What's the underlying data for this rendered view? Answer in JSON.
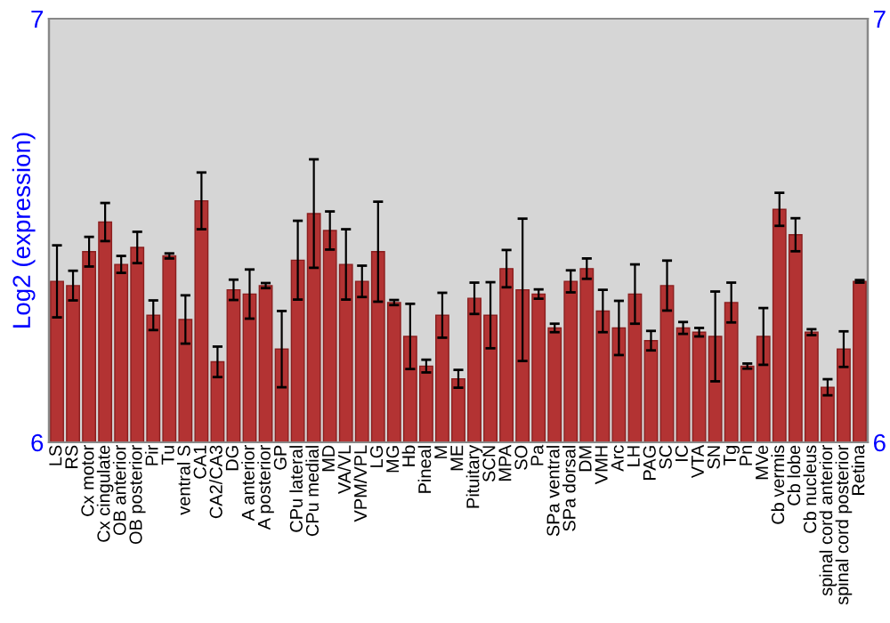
{
  "chart_data": {
    "type": "bar",
    "ylabel": "Log2 (expression)",
    "color": "#b33333",
    "categories": [
      "LS",
      "RS",
      "Cx motor",
      "Cx cingulate",
      "OB anterior",
      "OB posterior",
      "Pir",
      "Tu",
      "ventral S",
      "CA1",
      "CA2/CA3",
      "DG",
      "A anterior",
      "A posterior",
      "GP",
      "CPu lateral",
      "CPu medial",
      "MD",
      "VA/VL",
      "VPM/VPL",
      "LG",
      "MG",
      "Hb",
      "Pineal",
      "M",
      "ME",
      "Pituitary",
      "SCN",
      "MPA",
      "SO",
      "Pa",
      "SPa ventral",
      "SPa dorsal",
      "DM",
      "VMH",
      "Arc",
      "LH",
      "PAG",
      "SC",
      "IC",
      "VTA",
      "SN",
      "Tg",
      "Pn",
      "MVe",
      "Cb vermis",
      "Cb lobe",
      "Cb nucleus",
      "spinal cord anterior",
      "spinal cord posterior",
      "Retina"
    ],
    "values": [
      6.38,
      6.37,
      6.45,
      6.52,
      6.42,
      6.46,
      6.3,
      6.44,
      6.29,
      6.57,
      6.19,
      6.36,
      6.35,
      6.37,
      6.22,
      6.43,
      6.54,
      6.5,
      6.42,
      6.38,
      6.45,
      6.33,
      6.25,
      6.18,
      6.3,
      6.15,
      6.34,
      6.3,
      6.41,
      6.36,
      6.35,
      6.27,
      6.38,
      6.41,
      6.31,
      6.27,
      6.35,
      6.24,
      6.37,
      6.27,
      6.26,
      6.25,
      6.33,
      6.18,
      6.25,
      6.55,
      6.49,
      6.26,
      6.13,
      6.22,
      6.38
    ],
    "errors": [
      0.085,
      0.035,
      0.035,
      0.045,
      0.02,
      0.037,
      0.035,
      0.006,
      0.057,
      0.067,
      0.036,
      0.024,
      0.058,
      0.006,
      0.09,
      0.093,
      0.128,
      0.045,
      0.083,
      0.037,
      0.118,
      0.006,
      0.077,
      0.015,
      0.053,
      0.021,
      0.037,
      0.078,
      0.044,
      0.168,
      0.011,
      0.01,
      0.026,
      0.024,
      0.05,
      0.064,
      0.07,
      0.023,
      0.059,
      0.014,
      0.01,
      0.106,
      0.047,
      0.006,
      0.067,
      0.039,
      0.039,
      0.007,
      0.019,
      0.042,
      0.003
    ],
    "ylim": [
      6,
      7
    ],
    "yticks": [
      6,
      7
    ],
    "y2lim": [
      6,
      7
    ],
    "y2ticks": [
      6,
      7
    ],
    "grid": false,
    "legend": false
  }
}
